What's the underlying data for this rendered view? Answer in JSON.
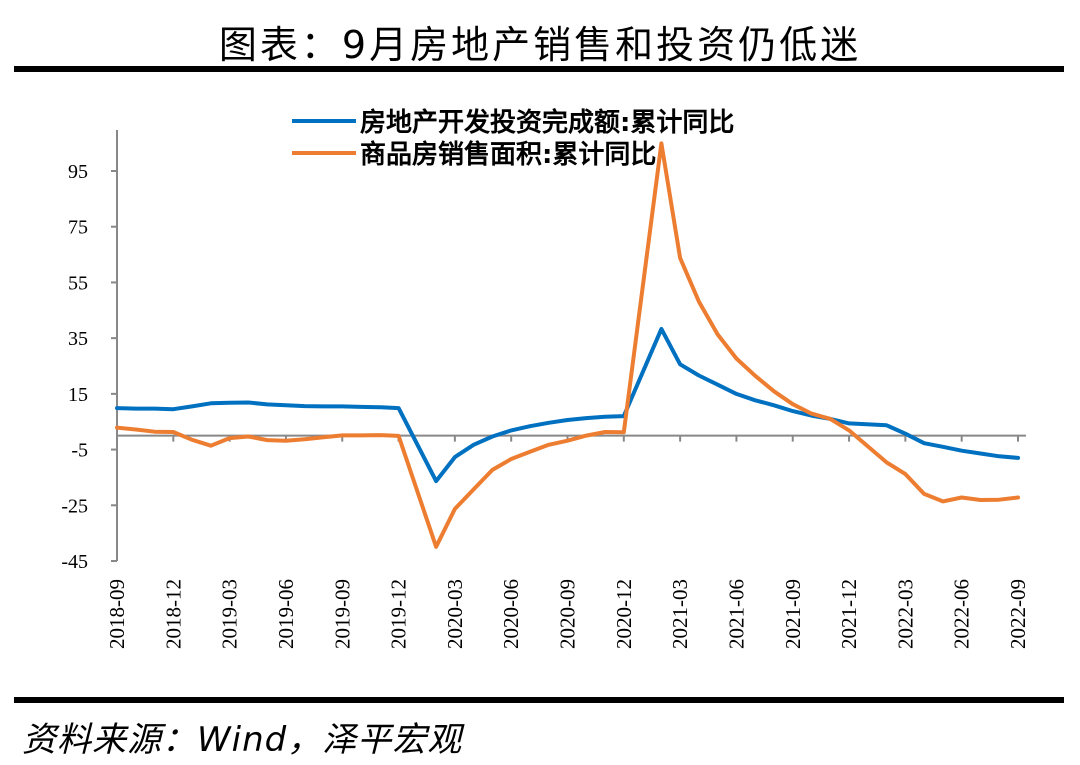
{
  "title": "图表：9月房地产销售和投资仍低迷",
  "source": "资料来源：Wind，泽平宏观",
  "chart_data": {
    "type": "line",
    "title": "图表：9月房地产销售和投资仍低迷",
    "xlabel": "",
    "ylabel": "",
    "ylim": [
      -45,
      110
    ],
    "yticks": [
      95,
      75,
      55,
      35,
      15,
      -5,
      -25,
      -45
    ],
    "ytick_labels": [
      "95",
      "75",
      "55",
      "35",
      "15",
      "-5",
      "-25",
      "-45"
    ],
    "x_tick_labels": [
      "2018-09",
      "2018-12",
      "2019-03",
      "2019-06",
      "2019-09",
      "2019-12",
      "2020-03",
      "2020-06",
      "2020-09",
      "2020-12",
      "2021-03",
      "2021-06",
      "2021-09",
      "2021-12",
      "2022-03",
      "2022-06",
      "2022-09"
    ],
    "legend_position": "top",
    "grid": false,
    "x": [
      "2018-09",
      "2018-10",
      "2018-11",
      "2018-12",
      "2019-01",
      "2019-02",
      "2019-03",
      "2019-04",
      "2019-05",
      "2019-06",
      "2019-07",
      "2019-08",
      "2019-09",
      "2019-10",
      "2019-11",
      "2019-12",
      "2020-01",
      "2020-02",
      "2020-03",
      "2020-04",
      "2020-05",
      "2020-06",
      "2020-07",
      "2020-08",
      "2020-09",
      "2020-10",
      "2020-11",
      "2020-12",
      "2021-01",
      "2021-02",
      "2021-03",
      "2021-04",
      "2021-05",
      "2021-06",
      "2021-07",
      "2021-08",
      "2021-09",
      "2021-10",
      "2021-11",
      "2021-12",
      "2022-01",
      "2022-02",
      "2022-03",
      "2022-04",
      "2022-05",
      "2022-06",
      "2022-07",
      "2022-08",
      "2022-09"
    ],
    "series": [
      {
        "name": "房地产开发投资完成额:累计同比",
        "color": "#0070C0",
        "values": [
          9.9,
          9.7,
          9.7,
          9.5,
          10.5,
          11.6,
          11.8,
          11.9,
          11.2,
          10.9,
          10.6,
          10.5,
          10.5,
          10.3,
          10.2,
          9.9,
          null,
          -16.3,
          -7.7,
          -3.3,
          -0.3,
          1.9,
          3.4,
          4.6,
          5.6,
          6.3,
          6.8,
          7.0,
          null,
          38.3,
          25.6,
          21.6,
          18.3,
          15.0,
          12.7,
          10.9,
          8.8,
          7.2,
          6.0,
          4.4,
          null,
          3.7,
          0.7,
          -2.7,
          -4.0,
          -5.4,
          -6.4,
          -7.4,
          -8.0
        ]
      },
      {
        "name": "商品房销售面积:累计同比",
        "color": "#ED7D31",
        "values": [
          2.9,
          2.2,
          1.4,
          1.3,
          -1.5,
          -3.6,
          -0.9,
          -0.3,
          -1.6,
          -1.8,
          -1.3,
          -0.6,
          0.1,
          0.1,
          0.2,
          -0.1,
          null,
          -39.9,
          -26.3,
          -19.3,
          -12.3,
          -8.4,
          -5.8,
          -3.3,
          -1.8,
          0.0,
          1.3,
          1.2,
          null,
          104.9,
          63.8,
          48.1,
          36.3,
          27.7,
          21.5,
          15.9,
          11.3,
          7.9,
          6.0,
          1.9,
          null,
          -9.6,
          -13.8,
          -20.9,
          -23.6,
          -22.2,
          -23.1,
          -23.0,
          -22.2
        ]
      }
    ]
  }
}
